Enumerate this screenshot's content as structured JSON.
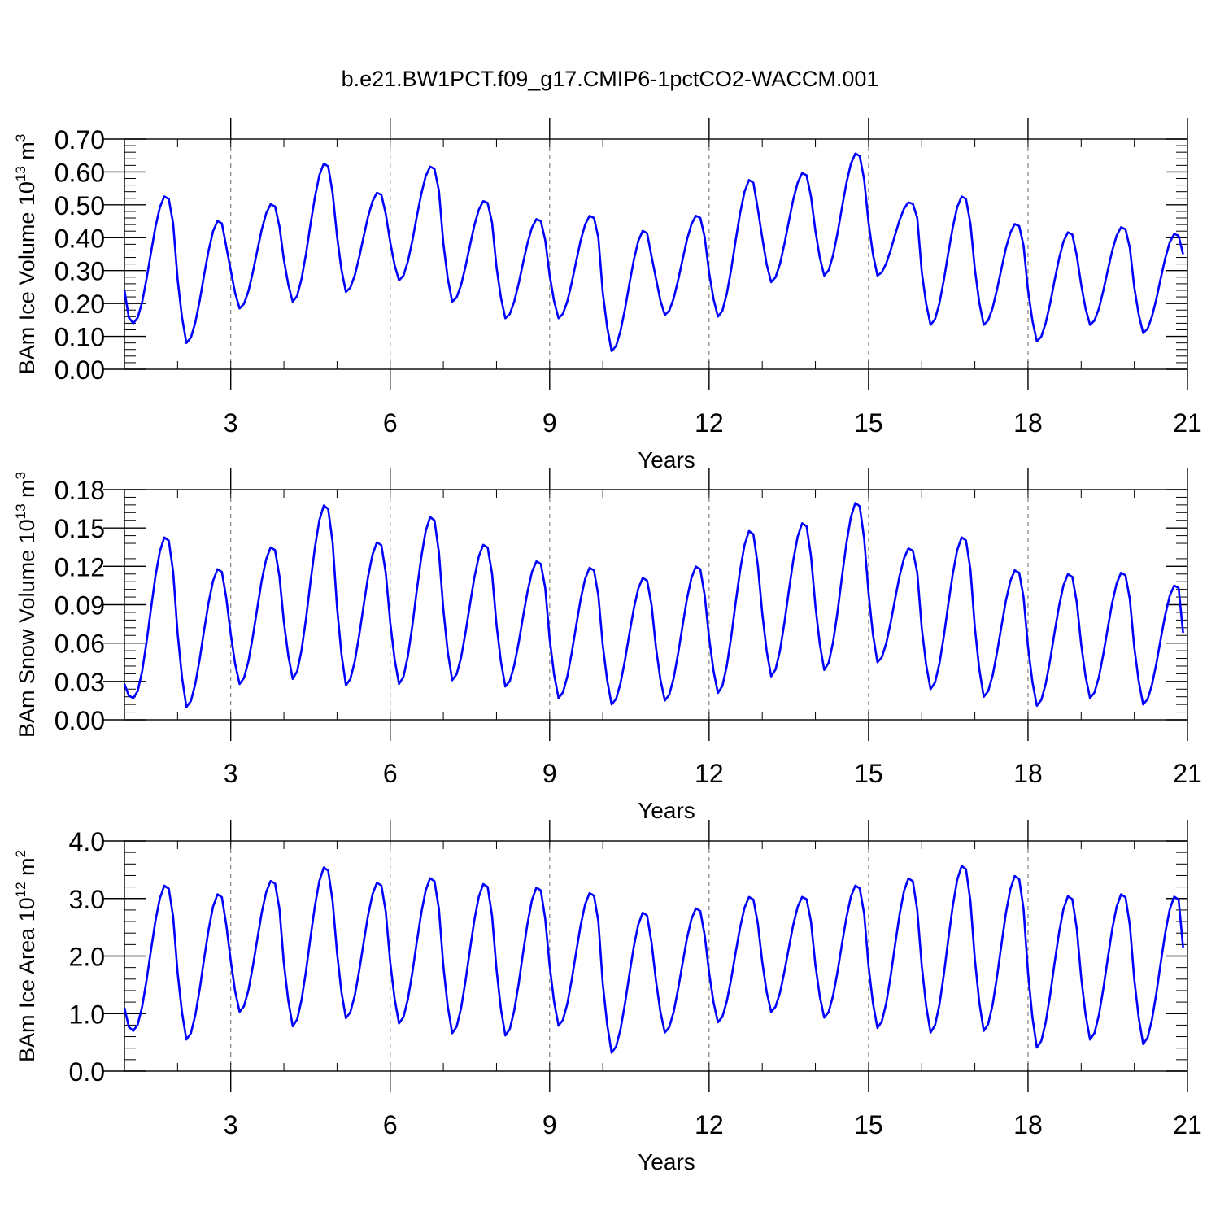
{
  "title": "b.e21.BW1PCT.f09_g17.CMIP6-1pctCO2-WACCM.001",
  "colors": {
    "line": "#0000ff",
    "axis": "#000000",
    "grid": "#808080"
  },
  "chart_data": [
    {
      "type": "line",
      "ylabel_main": "BAm Ice Volume 10",
      "ylabel_exp": "13",
      "ylabel_unit": " m",
      "ylabel_unit_exp": "3",
      "xlabel": "Years",
      "xlim": [
        1,
        21
      ],
      "ylim": [
        0,
        0.7
      ],
      "yticks": [
        "0.00",
        "0.10",
        "0.20",
        "0.30",
        "0.40",
        "0.50",
        "0.60",
        "0.70"
      ],
      "xticks": [
        "3",
        "6",
        "9",
        "12",
        "15",
        "18",
        "21"
      ],
      "grid": "vertical dashed at year ticks",
      "series": [
        {
          "year_max": [
            0.53,
            0.455,
            0.505,
            0.63,
            0.54,
            0.62,
            0.515,
            0.46,
            0.47,
            0.425,
            0.47,
            0.58,
            0.6,
            0.66,
            0.51,
            0.53,
            0.445,
            0.42,
            0.435,
            0.415
          ],
          "year_min": [
            0.14,
            0.08,
            0.185,
            0.205,
            0.235,
            0.27,
            0.205,
            0.155,
            0.155,
            0.055,
            0.165,
            0.16,
            0.265,
            0.285,
            0.285,
            0.135,
            0.135,
            0.085,
            0.135,
            0.11
          ],
          "start": 0.24,
          "end": 0.35
        }
      ]
    },
    {
      "type": "line",
      "ylabel_main": "BAm Snow Volume 10",
      "ylabel_exp": "13",
      "ylabel_unit": " m",
      "ylabel_unit_exp": "3",
      "xlabel": "Years",
      "xlim": [
        1,
        21
      ],
      "ylim": [
        0,
        0.18
      ],
      "yticks": [
        "0.00",
        "0.03",
        "0.06",
        "0.09",
        "0.12",
        "0.15",
        "0.18"
      ],
      "xticks": [
        "3",
        "6",
        "9",
        "12",
        "15",
        "18",
        "21"
      ],
      "grid": "vertical dashed at year ticks",
      "series": [
        {
          "year_max": [
            0.144,
            0.119,
            0.136,
            0.169,
            0.14,
            0.16,
            0.138,
            0.125,
            0.12,
            0.112,
            0.121,
            0.149,
            0.155,
            0.171,
            0.135,
            0.144,
            0.118,
            0.115,
            0.116,
            0.106
          ],
          "year_min": [
            0.017,
            0.01,
            0.028,
            0.032,
            0.027,
            0.028,
            0.031,
            0.026,
            0.017,
            0.012,
            0.015,
            0.021,
            0.034,
            0.039,
            0.045,
            0.024,
            0.018,
            0.011,
            0.017,
            0.012
          ],
          "start": 0.028,
          "end": 0.068
        }
      ]
    },
    {
      "type": "line",
      "ylabel_main": "BAm Ice Area 10",
      "ylabel_exp": "12",
      "ylabel_unit": " m",
      "ylabel_unit_exp": "2",
      "xlabel": "Years",
      "xlim": [
        1,
        21
      ],
      "ylim": [
        0,
        4.0
      ],
      "yticks": [
        "0.0",
        "1.0",
        "2.0",
        "3.0",
        "4.0"
      ],
      "xticks": [
        "3",
        "6",
        "9",
        "12",
        "15",
        "18",
        "21"
      ],
      "grid": "vertical dashed at year ticks",
      "series": [
        {
          "year_max": [
            3.25,
            3.1,
            3.33,
            3.57,
            3.3,
            3.38,
            3.28,
            3.22,
            3.12,
            2.78,
            2.85,
            3.05,
            3.05,
            3.25,
            3.38,
            3.6,
            3.42,
            3.07,
            3.1,
            3.06
          ],
          "year_min": [
            0.7,
            0.55,
            1.03,
            0.78,
            0.92,
            0.83,
            0.66,
            0.62,
            0.79,
            0.32,
            0.67,
            0.85,
            1.03,
            0.93,
            0.75,
            0.67,
            0.7,
            0.41,
            0.55,
            0.47
          ],
          "start": 1.1,
          "end": 2.15
        }
      ]
    }
  ]
}
